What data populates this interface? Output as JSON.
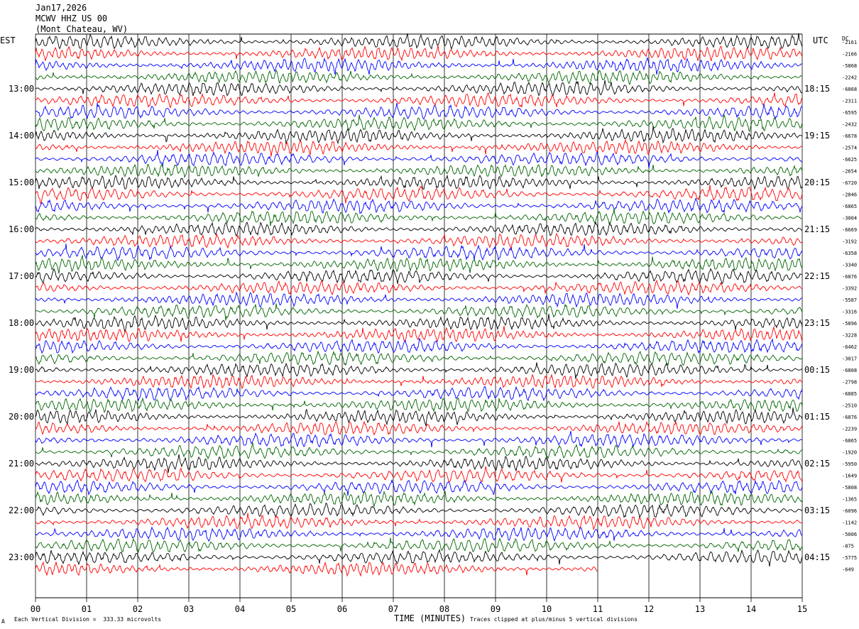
{
  "header": {
    "date": "Jan17,2026",
    "station": "MCWV HHZ US 00",
    "location": "(Mont Chateau, WV)"
  },
  "left_axis_label": "EST",
  "right_axis_label": "UTC",
  "dc_label": "DC",
  "footer": {
    "scale_note": "Each Vertical Division =  333.33 microvolts",
    "clip_note": "Traces clipped at plus/minus 5 vertical divisions",
    "corner_mark": "A"
  },
  "colors": {
    "trace_cycle": [
      "#000000",
      "#ff0000",
      "#0000ff",
      "#006400"
    ],
    "grid": "#000000"
  },
  "chart_data": {
    "type": "line",
    "title": "",
    "xlabel": "TIME (MINUTES)",
    "ylabel": "",
    "x_ticks": [
      "00",
      "01",
      "02",
      "03",
      "04",
      "05",
      "06",
      "07",
      "08",
      "09",
      "10",
      "11",
      "12",
      "13",
      "14",
      "15"
    ],
    "xlim": [
      0,
      15
    ],
    "traces_total": 46,
    "last_trace_minutes": 11,
    "hours_est": [
      "13:00",
      "14:00",
      "15:00",
      "16:00",
      "17:00",
      "18:00",
      "19:00",
      "20:00",
      "21:00",
      "22:00",
      "23:00"
    ],
    "hours_utc": [
      "18:15",
      "19:15",
      "20:15",
      "21:15",
      "22:15",
      "23:15",
      "00:15",
      "01:15",
      "02:15",
      "03:15",
      "04:15"
    ],
    "dc_offsets": [
      "-2161",
      "-2166",
      "-5868",
      "-2242",
      "-6868",
      "-2311",
      "-6595",
      "-2432",
      "-6678",
      "-2574",
      "-6625",
      "-2654",
      "-6720",
      "-2846",
      "-6865",
      "-3004",
      "-6669",
      "-3192",
      "-6358",
      "-3340",
      "-6876",
      "-3392",
      "-5587",
      "-3316",
      "-5896",
      "-3228",
      "-6462",
      "-3017",
      "-6808",
      "-2798",
      "-6885",
      "-2510",
      "-6876",
      "-2239",
      "-6865",
      "-1920",
      "-5950",
      "-1649",
      "-5808",
      "-1365",
      "-6096",
      "-1142",
      "-5006",
      "-875",
      "-5775",
      "-649"
    ]
  }
}
